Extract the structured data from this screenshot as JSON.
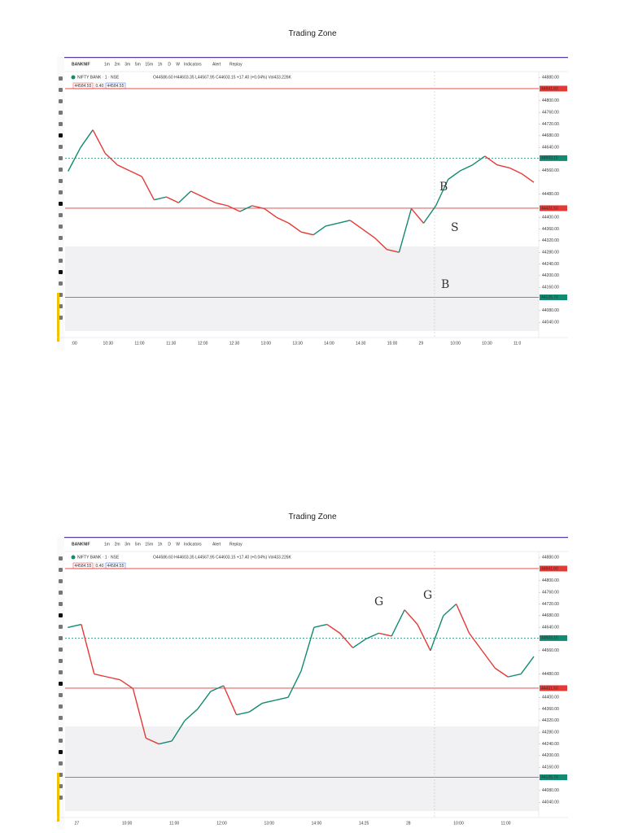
{
  "panels": [
    {
      "title": "Trading Zone",
      "toolbar": [
        "BANKNIF",
        "1m",
        "2m",
        "3m",
        "5m",
        "15m",
        "1h",
        "D",
        "W",
        "Indicators",
        "Alert",
        "Replay"
      ],
      "symbol": "NIFTY BANK · 1 · NSE",
      "ohlc": "O44586.60 H44603.35 L44567.95 C44603.15 +17.40 (+0.04%) Vol433.226K",
      "boxes": [
        "44584.55",
        "0.40",
        "44584.55"
      ],
      "ylim": [
        44010,
        44900
      ],
      "yticks": [
        {
          "value": 44880,
          "label": "44880.00"
        },
        {
          "value": 44800,
          "label": "44800.00"
        },
        {
          "value": 44760,
          "label": "44760.00"
        },
        {
          "value": 44720,
          "label": "44720.00"
        },
        {
          "value": 44680,
          "label": "44680.00"
        },
        {
          "value": 44640,
          "label": "44640.00"
        },
        {
          "value": 44560,
          "label": "44560.00"
        },
        {
          "value": 44480,
          "label": "44480.00"
        },
        {
          "value": 44400,
          "label": "44400.00"
        },
        {
          "value": 44360,
          "label": "44360.00"
        },
        {
          "value": 44320,
          "label": "44320.00"
        },
        {
          "value": 44280,
          "label": "44280.00"
        },
        {
          "value": 44240,
          "label": "44240.00"
        },
        {
          "value": 44200,
          "label": "44200.00"
        },
        {
          "value": 44160,
          "label": "44160.00"
        },
        {
          "value": 44080,
          "label": "44080.00"
        },
        {
          "value": 44040,
          "label": "44040.00"
        }
      ],
      "levels": [
        {
          "value": 44841.6,
          "label": "44841.60",
          "color": "#e53935"
        },
        {
          "value": 44603.15,
          "label": "44603.15",
          "color": "#138a72"
        },
        {
          "value": 44431.5,
          "label": "44431.50",
          "color": "#e53935"
        },
        {
          "value": 44125.7,
          "label": "44125.70",
          "color": "#138a72"
        }
      ],
      "times": [
        ":00",
        "10:30",
        "11:00",
        "11:30",
        "12:00",
        "12:30",
        "13:00",
        "13:30",
        "14:00",
        "14:30",
        "15:00",
        "29",
        "10:00",
        "10:30",
        "11:0"
      ],
      "prices": [
        44560,
        44640,
        44700,
        44620,
        44580,
        44560,
        44540,
        44460,
        44470,
        44450,
        44490,
        44470,
        44450,
        44440,
        44420,
        44440,
        44430,
        44400,
        44380,
        44350,
        44340,
        44370,
        44380,
        44390,
        44360,
        44330,
        44290,
        44280,
        44430,
        44380,
        44440,
        44530,
        44560,
        44580,
        44610,
        44580,
        44570,
        44550,
        44520
      ],
      "annotations": [
        "B",
        "S",
        "B"
      ]
    },
    {
      "title": "Trading Zone",
      "toolbar": [
        "BANKNIF",
        "1m",
        "2m",
        "3m",
        "5m",
        "15m",
        "1h",
        "D",
        "W",
        "Indicators",
        "Alert",
        "Replay"
      ],
      "symbol": "NIFTY BANK · 1 · NSE",
      "ohlc": "O44586.60 H44603.35 L44567.95 C44603.15 +17.40 (+0.04%) Vol433.226K",
      "boxes": [
        "44584.55",
        "0.40",
        "44584.55"
      ],
      "ylim": [
        44010,
        44900
      ],
      "yticks": [
        {
          "value": 44880,
          "label": "44880.00"
        },
        {
          "value": 44800,
          "label": "44800.00"
        },
        {
          "value": 44760,
          "label": "44760.00"
        },
        {
          "value": 44720,
          "label": "44720.00"
        },
        {
          "value": 44680,
          "label": "44680.00"
        },
        {
          "value": 44640,
          "label": "44640.00"
        },
        {
          "value": 44560,
          "label": "44560.00"
        },
        {
          "value": 44480,
          "label": "44480.00"
        },
        {
          "value": 44400,
          "label": "44400.00"
        },
        {
          "value": 44360,
          "label": "44360.00"
        },
        {
          "value": 44320,
          "label": "44320.00"
        },
        {
          "value": 44280,
          "label": "44280.00"
        },
        {
          "value": 44240,
          "label": "44240.00"
        },
        {
          "value": 44200,
          "label": "44200.00"
        },
        {
          "value": 44160,
          "label": "44160.00"
        },
        {
          "value": 44080,
          "label": "44080.00"
        },
        {
          "value": 44040,
          "label": "44040.00"
        }
      ],
      "levels": [
        {
          "value": 44841.6,
          "label": "44841.60",
          "color": "#e53935"
        },
        {
          "value": 44603.15,
          "label": "44603.15",
          "color": "#138a72"
        },
        {
          "value": 44431.5,
          "label": "44431.50",
          "color": "#e53935"
        },
        {
          "value": 44125.7,
          "label": "44125.70",
          "color": "#138a72"
        }
      ],
      "times": [
        "27",
        "10:00",
        "11:00",
        "12:00",
        "13:00",
        "14:00",
        "14:25",
        "28",
        "10:00",
        "11:00"
      ],
      "prices": [
        44640,
        44650,
        44480,
        44470,
        44460,
        44430,
        44260,
        44240,
        44250,
        44320,
        44360,
        44420,
        44440,
        44340,
        44350,
        44380,
        44390,
        44400,
        44490,
        44640,
        44650,
        44620,
        44570,
        44600,
        44620,
        44610,
        44700,
        44650,
        44560,
        44680,
        44720,
        44620,
        44560,
        44500,
        44470,
        44480,
        44540
      ],
      "annotations": [
        "G",
        "G"
      ]
    }
  ]
}
